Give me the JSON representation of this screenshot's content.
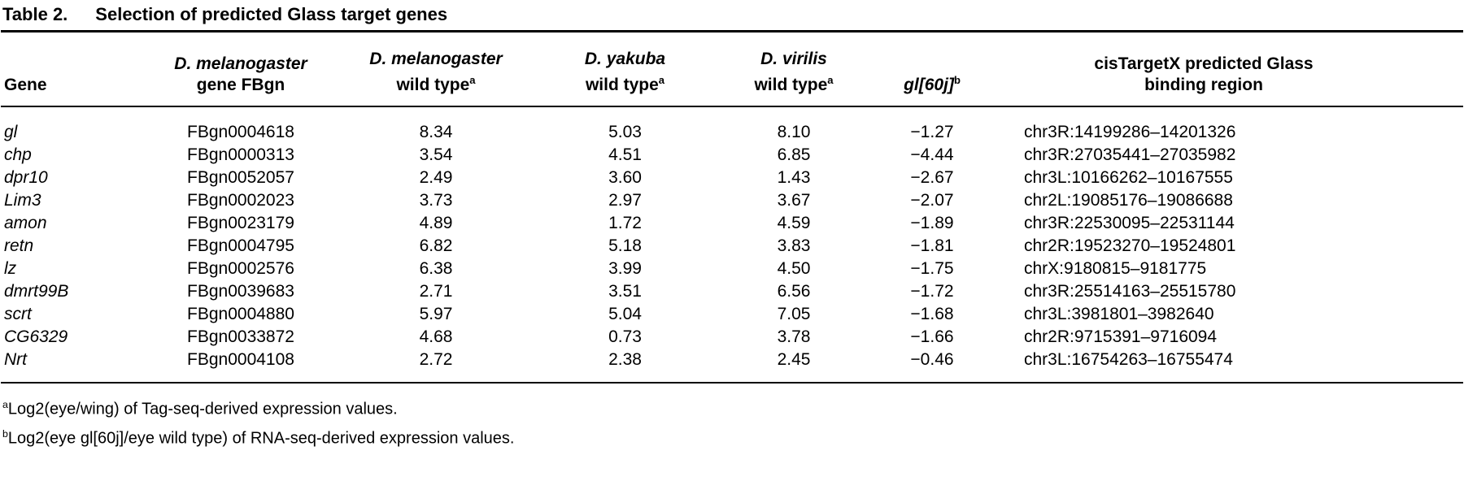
{
  "title": {
    "label": "Table 2.",
    "text": "Selection of predicted Glass target genes"
  },
  "table": {
    "columns": [
      {
        "l1": "",
        "l2": "Gene"
      },
      {
        "l1": "D. melanogaster",
        "l2": "gene FBgn"
      },
      {
        "l1": "D. melanogaster",
        "l2": "wild type",
        "sup": "a"
      },
      {
        "l1": "D. yakuba",
        "l2": "wild type",
        "sup": "a"
      },
      {
        "l1": "D. virilis",
        "l2": "wild type",
        "sup": "a"
      },
      {
        "l1": "",
        "l2": "gl[60j]",
        "sup": "b"
      },
      {
        "l1": "cisTargetX predicted Glass",
        "l2": "binding region"
      }
    ],
    "rows": [
      {
        "gene": "gl",
        "fbgn": "FBgn0004618",
        "mel_wt": "8.34",
        "yak_wt": "5.03",
        "vir_wt": "8.10",
        "gl60j": "−1.27",
        "region": "chr3R:14199286–14201326"
      },
      {
        "gene": "chp",
        "fbgn": "FBgn0000313",
        "mel_wt": "3.54",
        "yak_wt": "4.51",
        "vir_wt": "6.85",
        "gl60j": "−4.44",
        "region": "chr3R:27035441–27035982"
      },
      {
        "gene": "dpr10",
        "fbgn": "FBgn0052057",
        "mel_wt": "2.49",
        "yak_wt": "3.60",
        "vir_wt": "1.43",
        "gl60j": "−2.67",
        "region": "chr3L:10166262–10167555"
      },
      {
        "gene": "Lim3",
        "fbgn": "FBgn0002023",
        "mel_wt": "3.73",
        "yak_wt": "2.97",
        "vir_wt": "3.67",
        "gl60j": "−2.07",
        "region": "chr2L:19085176–19086688"
      },
      {
        "gene": "amon",
        "fbgn": "FBgn0023179",
        "mel_wt": "4.89",
        "yak_wt": "1.72",
        "vir_wt": "4.59",
        "gl60j": "−1.89",
        "region": "chr3R:22530095–22531144"
      },
      {
        "gene": "retn",
        "fbgn": "FBgn0004795",
        "mel_wt": "6.82",
        "yak_wt": "5.18",
        "vir_wt": "3.83",
        "gl60j": "−1.81",
        "region": "chr2R:19523270–19524801"
      },
      {
        "gene": "lz",
        "fbgn": "FBgn0002576",
        "mel_wt": "6.38",
        "yak_wt": "3.99",
        "vir_wt": "4.50",
        "gl60j": "−1.75",
        "region": "chrX:9180815–9181775"
      },
      {
        "gene": "dmrt99B",
        "fbgn": "FBgn0039683",
        "mel_wt": "2.71",
        "yak_wt": "3.51",
        "vir_wt": "6.56",
        "gl60j": "−1.72",
        "region": "chr3R:25514163–25515780"
      },
      {
        "gene": "scrt",
        "fbgn": "FBgn0004880",
        "mel_wt": "5.97",
        "yak_wt": "5.04",
        "vir_wt": "7.05",
        "gl60j": "−1.68",
        "region": "chr3L:3981801–3982640"
      },
      {
        "gene": "CG6329",
        "fbgn": "FBgn0033872",
        "mel_wt": "4.68",
        "yak_wt": "0.73",
        "vir_wt": "3.78",
        "gl60j": "−1.66",
        "region": "chr2R:9715391–9716094"
      },
      {
        "gene": "Nrt",
        "fbgn": "FBgn0004108",
        "mel_wt": "2.72",
        "yak_wt": "2.38",
        "vir_wt": "2.45",
        "gl60j": "−0.46",
        "region": "chr3L:16754263–16755474"
      }
    ]
  },
  "footnotes": [
    {
      "sup": "a",
      "text": "Log2(eye/wing) of Tag-seq-derived expression values."
    },
    {
      "sup": "b",
      "text": "Log2(eye gl[60j]/eye wild type) of RNA-seq-derived expression values."
    }
  ],
  "colors": {
    "text": "#000000",
    "background": "#ffffff",
    "rule": "#000000"
  }
}
